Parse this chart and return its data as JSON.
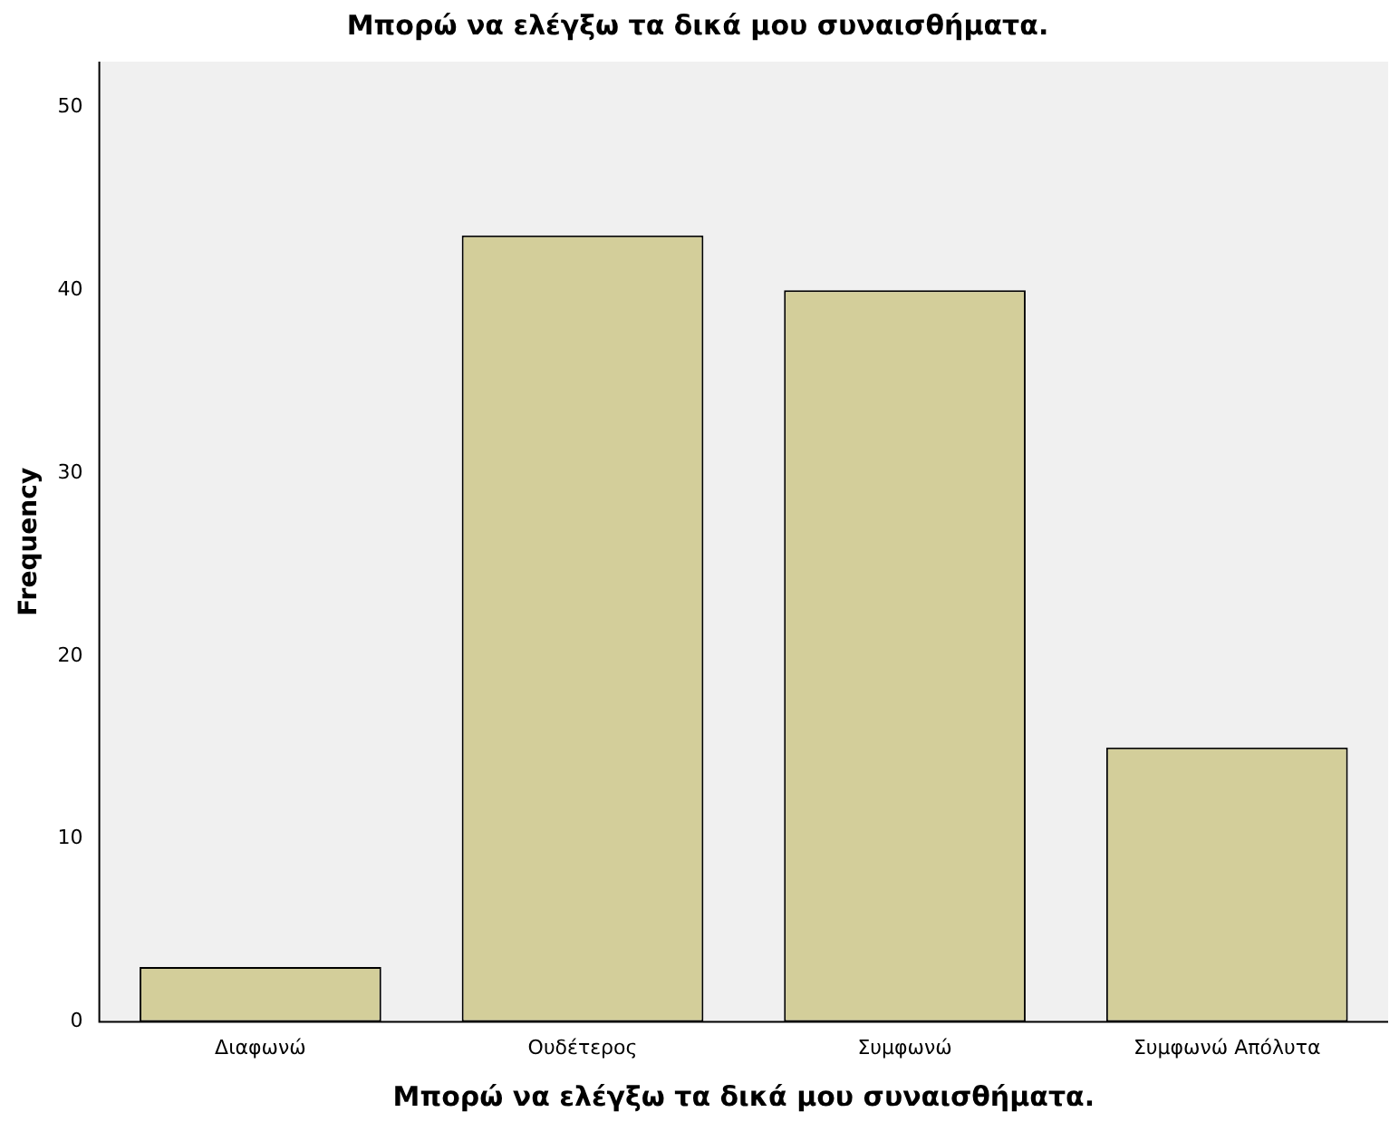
{
  "chart_data": {
    "type": "bar",
    "title": "Μπορώ να ελέγξω τα δικά μου συναισθήματα.",
    "xlabel": "Μπορώ να ελέγξω τα δικά μου συναισθήματα.",
    "ylabel": "Frequency",
    "categories": [
      "Διαφωνώ",
      "Ουδέτερος",
      "Συμφωνώ",
      "Συμφωνώ Απόλυτα"
    ],
    "values": [
      3,
      43,
      40,
      15
    ],
    "color": "#d3ce9a",
    "ylim": [
      0,
      52.5
    ],
    "yticks": [
      0,
      10,
      20,
      30,
      40,
      50
    ],
    "grid": false,
    "legend": false
  }
}
